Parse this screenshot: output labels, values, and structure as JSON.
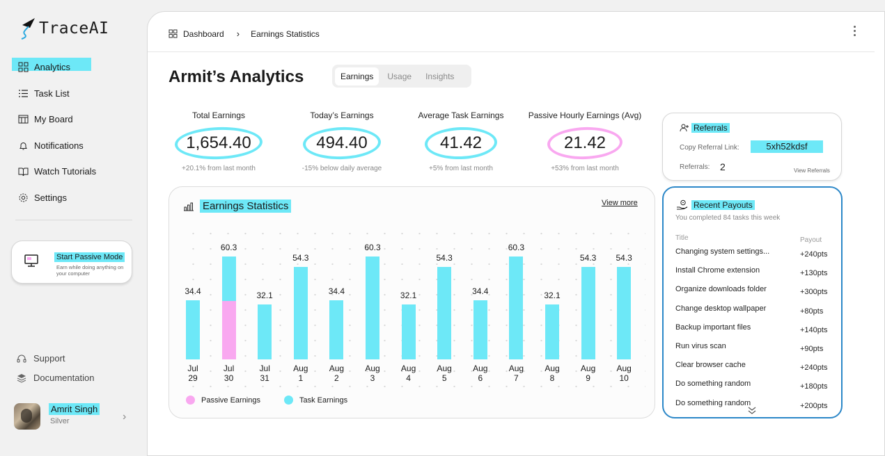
{
  "app": {
    "name": "TraceAI"
  },
  "sidebar": {
    "items": [
      {
        "label": "Analytics",
        "icon": "grid-icon",
        "active": true
      },
      {
        "label": "Task List",
        "icon": "list-icon"
      },
      {
        "label": "My Board",
        "icon": "board-icon"
      },
      {
        "label": "Notifications",
        "icon": "bell-icon"
      },
      {
        "label": "Watch Tutorials",
        "icon": "book-icon"
      },
      {
        "label": "Settings",
        "icon": "gear-icon"
      }
    ],
    "passive": {
      "title": "Start Passive Mode",
      "subtitle": "Earn while doing anything on your computer"
    },
    "support": "Support",
    "documentation": "Documentation",
    "user": {
      "name": "Amrit Singh",
      "rank": "Silver"
    }
  },
  "breadcrumb": {
    "root": "Dashboard",
    "current": "Earnings Statistics"
  },
  "page": {
    "title": "Armit’s Analytics"
  },
  "tabs": [
    "Earnings",
    "Usage",
    "Insights"
  ],
  "stats": [
    {
      "label": "Total Earnings",
      "value": "1,654.40",
      "sub": "+20.1% from last month"
    },
    {
      "label": "Today’s Earnings",
      "value": "494.40",
      "sub": "-15% below daily average"
    },
    {
      "label": "Average Task Earnings",
      "value": "41.42",
      "sub": "+5% from last month"
    },
    {
      "label": "Passive Hourly Earnings (Avg)",
      "value": "21.42",
      "sub": "+53% from last month"
    }
  ],
  "chart_data": {
    "type": "bar",
    "title": "Earnings Statistics",
    "view_more": "View more",
    "categories": [
      [
        "Jul",
        "29"
      ],
      [
        "Jul",
        "30"
      ],
      [
        "Jul",
        "31"
      ],
      [
        "Aug",
        "1"
      ],
      [
        "Aug",
        "2"
      ],
      [
        "Aug",
        "3"
      ],
      [
        "Aug",
        "4"
      ],
      [
        "Aug",
        "5"
      ],
      [
        "Aug",
        "6"
      ],
      [
        "Aug",
        "7"
      ],
      [
        "Aug",
        "8"
      ],
      [
        "Aug",
        "9"
      ],
      [
        "Aug",
        "10"
      ]
    ],
    "totals": [
      34.4,
      60.3,
      32.1,
      54.3,
      34.4,
      60.3,
      32.1,
      54.3,
      34.4,
      60.3,
      32.1,
      54.3,
      54.3
    ],
    "series": [
      {
        "name": "Passive Earnings",
        "color": "#f9a8f0",
        "values": [
          0,
          34,
          0,
          0,
          0,
          0,
          0,
          0,
          0,
          0,
          0,
          0,
          0
        ]
      },
      {
        "name": "Task Earnings",
        "color": "#6de8f7",
        "values": [
          34.4,
          26.3,
          32.1,
          54.3,
          34.4,
          60.3,
          32.1,
          54.3,
          34.4,
          60.3,
          32.1,
          54.3,
          54.3
        ]
      }
    ],
    "ylim": [
      0,
      70
    ]
  },
  "referrals": {
    "title": "Referrals",
    "copy_label": "Copy Referral Link:",
    "code": "5xh52kdsf",
    "count_label": "Referrals:",
    "count": "2",
    "view": "View Referrals"
  },
  "payouts": {
    "title": "Recent Payouts",
    "subtitle": "You completed 84 tasks this week",
    "col_title": "Title",
    "col_payout": "Payout",
    "rows": [
      {
        "title": "Changing system settings...",
        "payout": "+240pts"
      },
      {
        "title": "Install Chrome extension",
        "payout": "+130pts"
      },
      {
        "title": "Organize downloads folder",
        "payout": "+300pts"
      },
      {
        "title": "Change desktop wallpaper",
        "payout": "+80pts"
      },
      {
        "title": "Backup important files",
        "payout": "+140pts"
      },
      {
        "title": "Run virus scan",
        "payout": "+90pts"
      },
      {
        "title": "Clear browser cache",
        "payout": "+240pts"
      },
      {
        "title": "Do something random",
        "payout": "+180pts"
      },
      {
        "title": "Do something random",
        "payout": "+200pts"
      }
    ]
  },
  "colors": {
    "accent": "#6de8f7",
    "pink": "#f9a8f0",
    "border_blue": "#2b87c8"
  }
}
